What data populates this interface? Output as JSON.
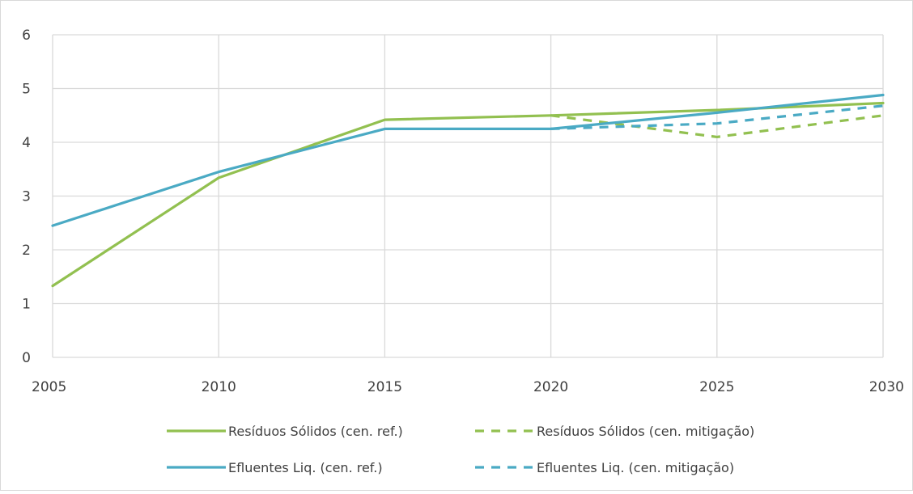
{
  "chart_data": {
    "type": "line",
    "x": [
      2005,
      2010,
      2015,
      2020,
      2025,
      2030
    ],
    "xlim": [
      2005,
      2030
    ],
    "ylim": [
      0,
      6
    ],
    "yticks": [
      0,
      1,
      2,
      3,
      4,
      5,
      6
    ],
    "grid": true,
    "legend_position": "bottom",
    "series": [
      {
        "name": "Resíduos Sólidos (cen. ref.)",
        "color": "#92c050",
        "dash": false,
        "x": [
          2005,
          2010,
          2015,
          2020,
          2025,
          2030
        ],
        "values": [
          1.33,
          3.34,
          4.42,
          4.5,
          4.6,
          4.73
        ]
      },
      {
        "name": "Resíduos Sólidos (cen. mitigação)",
        "color": "#92c050",
        "dash": true,
        "x": [
          2020,
          2025,
          2030
        ],
        "values": [
          4.5,
          4.1,
          4.5
        ]
      },
      {
        "name": "Efluentes Liq. (cen. ref.)",
        "color": "#4aaac4",
        "dash": false,
        "x": [
          2005,
          2010,
          2015,
          2020,
          2025,
          2030
        ],
        "values": [
          2.45,
          3.45,
          4.25,
          4.25,
          4.55,
          4.88
        ]
      },
      {
        "name": "Efluentes Liq. (cen. mitigação)",
        "color": "#4aaac4",
        "dash": true,
        "x": [
          2020,
          2025,
          2030
        ],
        "values": [
          4.25,
          4.35,
          4.68
        ]
      }
    ]
  }
}
